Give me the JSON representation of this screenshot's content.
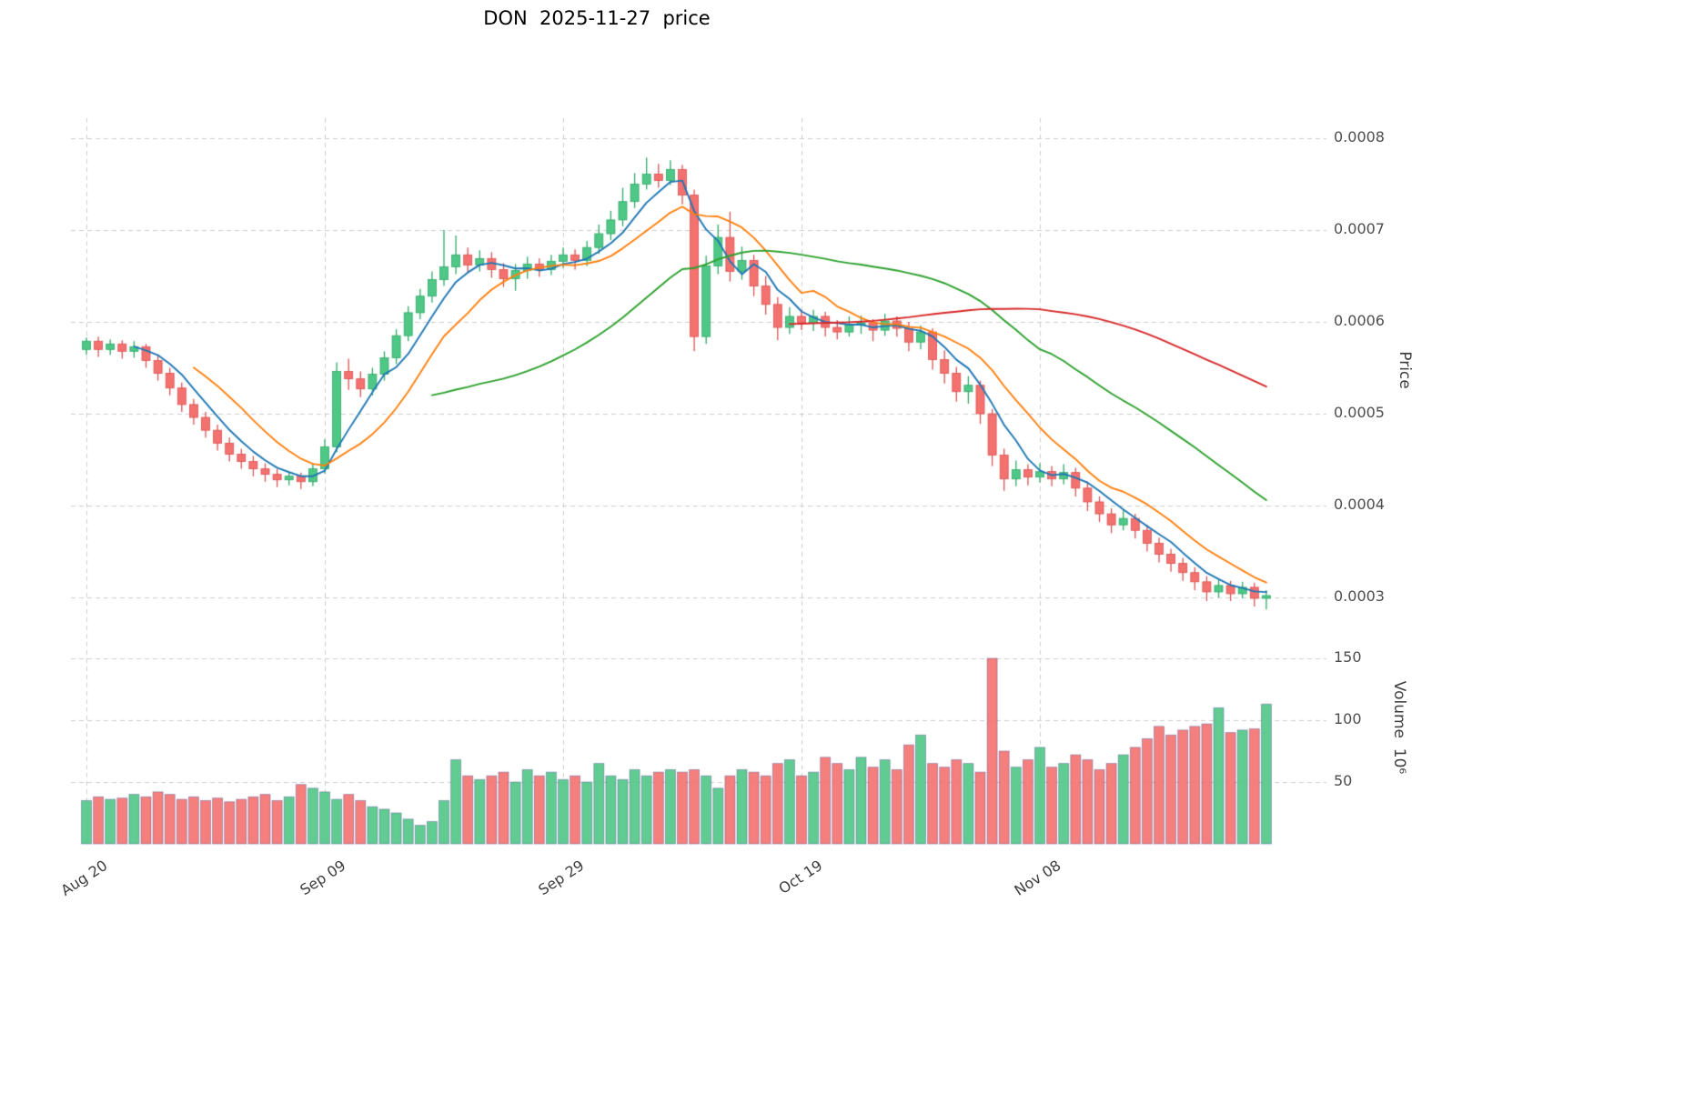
{
  "title": "DON  2025-11-27  price",
  "axes": {
    "price_label": "Price",
    "volume_label": "Volume  10⁶",
    "price_ticks": [
      "0.0008",
      "0.0007",
      "0.0006",
      "0.0005",
      "0.0004",
      "0.0003"
    ],
    "volume_ticks": [
      "150",
      "100",
      "50"
    ],
    "x_ticks": [
      {
        "index": 0,
        "label": "Aug 20"
      },
      {
        "index": 20,
        "label": "Sep 09"
      },
      {
        "index": 40,
        "label": "Sep 29"
      },
      {
        "index": 60,
        "label": "Oct 19"
      },
      {
        "index": 80,
        "label": "Nov 08"
      }
    ]
  },
  "colors": {
    "up_body": "#4fc786",
    "up_edge": "#2fa867",
    "down_body": "#f3716f",
    "down_edge": "#da5150",
    "volume_edge": "rgba(70,70,140,0.45)",
    "grid": "#cccccc",
    "ma_blue": "#1f77b4",
    "ma_orange": "#ff7f0e",
    "ma_green": "#2ca02c",
    "ma_red": "#d62728"
  },
  "chart_data": {
    "type": "candlestick",
    "title": "DON 2025-11-27 price",
    "price_unit": "values are price x 10000 (axis shows 0.0003 - 0.0008)",
    "volume_unit": "10^6",
    "price_axis_ticks": [
      0.0008,
      0.0007,
      0.0006,
      0.0005,
      0.0004,
      0.0003
    ],
    "volume_axis_ticks": [
      150,
      100,
      50
    ],
    "x_tick_labels": [
      "Aug 20",
      "Sep 09",
      "Sep 29",
      "Oct 19",
      "Nov 08"
    ],
    "grid": "dashed",
    "legend_position": "none",
    "moving_averages": [
      {
        "name": "MA5",
        "window": 5,
        "color_key": "ma_blue"
      },
      {
        "name": "MA10",
        "window": 10,
        "color_key": "ma_orange"
      },
      {
        "name": "MA30",
        "window": 30,
        "color_key": "ma_green"
      },
      {
        "name": "MA60",
        "window": 60,
        "color_key": "ma_red"
      }
    ],
    "columns": [
      "date",
      "open",
      "high",
      "low",
      "close",
      "volume"
    ],
    "candles": [
      [
        "2025-08-20",
        5.7,
        5.83,
        5.64,
        5.79,
        35
      ],
      [
        "2025-08-21",
        5.79,
        5.84,
        5.62,
        5.7,
        38
      ],
      [
        "2025-08-22",
        5.7,
        5.81,
        5.64,
        5.76,
        36
      ],
      [
        "2025-08-23",
        5.76,
        5.8,
        5.6,
        5.68,
        37
      ],
      [
        "2025-08-24",
        5.68,
        5.79,
        5.61,
        5.73,
        40
      ],
      [
        "2025-08-25",
        5.73,
        5.76,
        5.5,
        5.58,
        38
      ],
      [
        "2025-08-26",
        5.58,
        5.64,
        5.36,
        5.44,
        42
      ],
      [
        "2025-08-27",
        5.44,
        5.5,
        5.2,
        5.28,
        40
      ],
      [
        "2025-08-28",
        5.28,
        5.34,
        5.02,
        5.1,
        36
      ],
      [
        "2025-08-29",
        5.1,
        5.16,
        4.88,
        4.96,
        38
      ],
      [
        "2025-08-30",
        4.96,
        5.02,
        4.74,
        4.82,
        35
      ],
      [
        "2025-08-31",
        4.82,
        4.88,
        4.6,
        4.68,
        37
      ],
      [
        "2025-09-01",
        4.68,
        4.74,
        4.48,
        4.56,
        34
      ],
      [
        "2025-09-02",
        4.56,
        4.62,
        4.4,
        4.48,
        36
      ],
      [
        "2025-09-03",
        4.48,
        4.54,
        4.32,
        4.4,
        38
      ],
      [
        "2025-09-04",
        4.4,
        4.46,
        4.26,
        4.34,
        40
      ],
      [
        "2025-09-05",
        4.34,
        4.4,
        4.2,
        4.28,
        35
      ],
      [
        "2025-09-06",
        4.28,
        4.37,
        4.22,
        4.32,
        38
      ],
      [
        "2025-09-07",
        4.32,
        4.36,
        4.18,
        4.26,
        48
      ],
      [
        "2025-09-08",
        4.26,
        4.46,
        4.21,
        4.4,
        45
      ],
      [
        "2025-09-09",
        4.4,
        4.72,
        4.35,
        4.64,
        42
      ],
      [
        "2025-09-10",
        4.64,
        5.56,
        4.58,
        5.46,
        36
      ],
      [
        "2025-09-11",
        5.46,
        5.6,
        5.26,
        5.38,
        40
      ],
      [
        "2025-09-12",
        5.38,
        5.46,
        5.18,
        5.27,
        35
      ],
      [
        "2025-09-13",
        5.27,
        5.5,
        5.2,
        5.43,
        30
      ],
      [
        "2025-09-14",
        5.43,
        5.68,
        5.36,
        5.61,
        28
      ],
      [
        "2025-09-15",
        5.61,
        5.92,
        5.54,
        5.85,
        25
      ],
      [
        "2025-09-16",
        5.85,
        6.17,
        5.79,
        6.1,
        20
      ],
      [
        "2025-09-17",
        6.1,
        6.36,
        6.03,
        6.28,
        15
      ],
      [
        "2025-09-18",
        6.28,
        6.55,
        6.21,
        6.46,
        18
      ],
      [
        "2025-09-19",
        6.46,
        7.0,
        6.39,
        6.6,
        35
      ],
      [
        "2025-09-20",
        6.6,
        6.94,
        6.52,
        6.73,
        68
      ],
      [
        "2025-09-21",
        6.73,
        6.81,
        6.53,
        6.62,
        55
      ],
      [
        "2025-09-22",
        6.62,
        6.78,
        6.55,
        6.69,
        52
      ],
      [
        "2025-09-23",
        6.69,
        6.76,
        6.48,
        6.57,
        55
      ],
      [
        "2025-09-24",
        6.57,
        6.64,
        6.38,
        6.47,
        58
      ],
      [
        "2025-09-25",
        6.47,
        6.63,
        6.34,
        6.56,
        50
      ],
      [
        "2025-09-26",
        6.56,
        6.71,
        6.47,
        6.63,
        60
      ],
      [
        "2025-09-27",
        6.63,
        6.69,
        6.49,
        6.57,
        55
      ],
      [
        "2025-09-28",
        6.57,
        6.73,
        6.51,
        6.66,
        58
      ],
      [
        "2025-09-29",
        6.66,
        6.81,
        6.59,
        6.73,
        52
      ],
      [
        "2025-09-30",
        6.73,
        6.79,
        6.57,
        6.67,
        55
      ],
      [
        "2025-10-01",
        6.67,
        6.88,
        6.61,
        6.81,
        50
      ],
      [
        "2025-10-02",
        6.81,
        7.06,
        6.74,
        6.96,
        65
      ],
      [
        "2025-10-03",
        6.96,
        7.21,
        6.89,
        7.11,
        55
      ],
      [
        "2025-10-04",
        7.11,
        7.46,
        7.04,
        7.31,
        52
      ],
      [
        "2025-10-05",
        7.31,
        7.62,
        7.24,
        7.5,
        60
      ],
      [
        "2025-10-06",
        7.5,
        7.79,
        7.44,
        7.61,
        55
      ],
      [
        "2025-10-07",
        7.61,
        7.72,
        7.46,
        7.54,
        58
      ],
      [
        "2025-10-08",
        7.54,
        7.76,
        7.49,
        7.66,
        60
      ],
      [
        "2025-10-09",
        7.66,
        7.71,
        7.28,
        7.38,
        58
      ],
      [
        "2025-10-10",
        7.38,
        7.44,
        5.68,
        5.84,
        60
      ],
      [
        "2025-10-11",
        5.84,
        6.72,
        5.76,
        6.61,
        55
      ],
      [
        "2025-10-12",
        6.61,
        7.06,
        6.52,
        6.92,
        45
      ],
      [
        "2025-10-13",
        6.92,
        7.2,
        6.44,
        6.55,
        55
      ],
      [
        "2025-10-14",
        6.55,
        6.82,
        6.46,
        6.67,
        60
      ],
      [
        "2025-10-15",
        6.67,
        6.73,
        6.28,
        6.39,
        58
      ],
      [
        "2025-10-16",
        6.39,
        6.5,
        6.08,
        6.19,
        55
      ],
      [
        "2025-10-17",
        6.19,
        6.27,
        5.8,
        5.94,
        65
      ],
      [
        "2025-10-18",
        5.94,
        6.16,
        5.87,
        6.06,
        68
      ],
      [
        "2025-10-19",
        6.06,
        6.13,
        5.91,
        5.99,
        55
      ],
      [
        "2025-10-20",
        5.99,
        6.13,
        5.9,
        6.06,
        58
      ],
      [
        "2025-10-21",
        6.06,
        6.11,
        5.84,
        5.94,
        70
      ],
      [
        "2025-10-22",
        5.94,
        6.02,
        5.81,
        5.89,
        65
      ],
      [
        "2025-10-23",
        5.89,
        6.06,
        5.84,
        5.97,
        60
      ],
      [
        "2025-10-24",
        5.97,
        6.07,
        5.87,
        5.99,
        70
      ],
      [
        "2025-10-25",
        5.99,
        6.03,
        5.79,
        5.91,
        62
      ],
      [
        "2025-10-26",
        5.91,
        6.09,
        5.85,
        6.01,
        68
      ],
      [
        "2025-10-27",
        6.01,
        6.06,
        5.84,
        5.93,
        60
      ],
      [
        "2025-10-28",
        5.93,
        6.0,
        5.68,
        5.78,
        80
      ],
      [
        "2025-10-29",
        5.78,
        5.96,
        5.7,
        5.89,
        88
      ],
      [
        "2025-10-30",
        5.89,
        5.93,
        5.48,
        5.59,
        65
      ],
      [
        "2025-10-31",
        5.59,
        5.69,
        5.33,
        5.44,
        62
      ],
      [
        "2025-11-01",
        5.44,
        5.51,
        5.13,
        5.24,
        68
      ],
      [
        "2025-11-02",
        5.24,
        5.41,
        5.11,
        5.31,
        65
      ],
      [
        "2025-11-03",
        5.31,
        5.36,
        4.89,
        5.0,
        58
      ],
      [
        "2025-11-04",
        5.0,
        5.05,
        4.43,
        4.55,
        150
      ],
      [
        "2025-11-05",
        4.55,
        4.62,
        4.16,
        4.29,
        75
      ],
      [
        "2025-11-06",
        4.29,
        4.49,
        4.21,
        4.39,
        62
      ],
      [
        "2025-11-07",
        4.39,
        4.45,
        4.22,
        4.31,
        68
      ],
      [
        "2025-11-08",
        4.31,
        4.46,
        4.25,
        4.37,
        78
      ],
      [
        "2025-11-09",
        4.37,
        4.43,
        4.21,
        4.29,
        62
      ],
      [
        "2025-11-10",
        4.29,
        4.45,
        4.23,
        4.36,
        65
      ],
      [
        "2025-11-11",
        4.36,
        4.41,
        4.1,
        4.19,
        72
      ],
      [
        "2025-11-12",
        4.19,
        4.26,
        3.94,
        4.04,
        68
      ],
      [
        "2025-11-13",
        4.04,
        4.1,
        3.82,
        3.91,
        60
      ],
      [
        "2025-11-14",
        3.91,
        3.97,
        3.7,
        3.79,
        65
      ],
      [
        "2025-11-15",
        3.79,
        3.95,
        3.73,
        3.86,
        72
      ],
      [
        "2025-11-16",
        3.86,
        3.91,
        3.64,
        3.73,
        78
      ],
      [
        "2025-11-17",
        3.73,
        3.79,
        3.5,
        3.59,
        85
      ],
      [
        "2025-11-18",
        3.59,
        3.65,
        3.38,
        3.47,
        95
      ],
      [
        "2025-11-19",
        3.47,
        3.53,
        3.28,
        3.37,
        88
      ],
      [
        "2025-11-20",
        3.37,
        3.43,
        3.18,
        3.27,
        92
      ],
      [
        "2025-11-21",
        3.27,
        3.33,
        3.08,
        3.17,
        95
      ],
      [
        "2025-11-22",
        3.17,
        3.23,
        2.96,
        3.06,
        97
      ],
      [
        "2025-11-23",
        3.06,
        3.2,
        3.0,
        3.13,
        110
      ],
      [
        "2025-11-24",
        3.13,
        3.18,
        2.96,
        3.04,
        90
      ],
      [
        "2025-11-25",
        3.04,
        3.17,
        2.99,
        3.11,
        92
      ],
      [
        "2025-11-26",
        3.11,
        3.16,
        2.9,
        2.99,
        93
      ],
      [
        "2025-11-27",
        2.99,
        3.08,
        2.87,
        3.02,
        113
      ]
    ]
  }
}
